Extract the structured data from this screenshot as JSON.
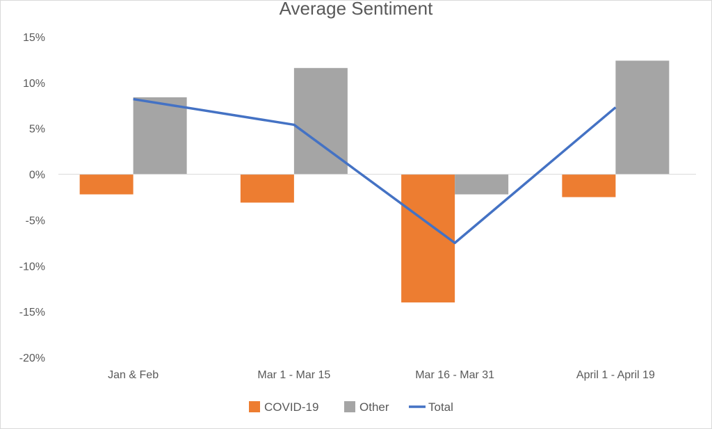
{
  "chart_data": {
    "type": "bar",
    "title": "Average Sentiment",
    "xlabel": "",
    "ylabel": "",
    "categories": [
      "Jan & Feb",
      "Mar 1 - Mar 15",
      "Mar 16 - Mar 31",
      "April 1 - April 19"
    ],
    "y_ticks": [
      "15%",
      "10%",
      "5%",
      "0%",
      "-5%",
      "-10%",
      "-15%",
      "-20%"
    ],
    "ylim": [
      -20,
      15
    ],
    "grid": false,
    "legend_position": "bottom",
    "series": [
      {
        "name": "COVID-19",
        "kind": "bar",
        "color": "#ed7d31",
        "values": [
          -2.2,
          -3.1,
          -14.0,
          -2.5
        ]
      },
      {
        "name": "Other",
        "kind": "bar",
        "color": "#a5a5a5",
        "values": [
          8.4,
          11.6,
          -2.2,
          12.4
        ]
      },
      {
        "name": "Total",
        "kind": "line",
        "color": "#4472c4",
        "values": [
          8.2,
          5.4,
          -7.5,
          7.3
        ]
      }
    ]
  }
}
